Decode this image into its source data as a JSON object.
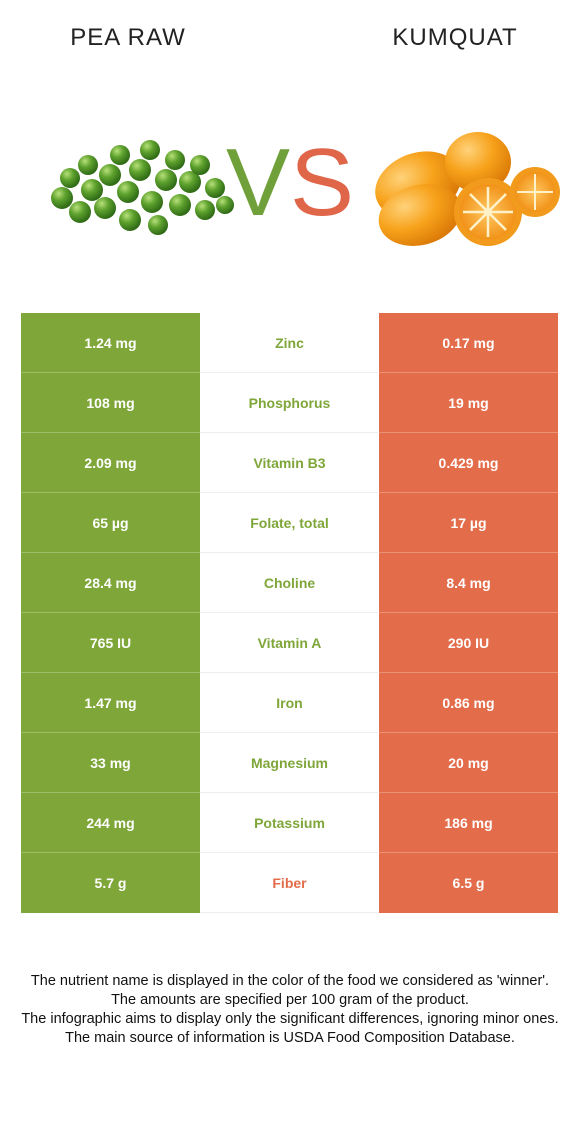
{
  "header": {
    "left_food": "PEA RAW",
    "right_food": "KUMQUAT",
    "vs_v": "V",
    "vs_s": "S"
  },
  "colors": {
    "left_food": "#7ea639",
    "right_food": "#e36c4a"
  },
  "rows": [
    {
      "left": "1.24 mg",
      "nutrient": "Zinc",
      "right": "0.17 mg",
      "winner": "left"
    },
    {
      "left": "108 mg",
      "nutrient": "Phosphorus",
      "right": "19 mg",
      "winner": "left"
    },
    {
      "left": "2.09 mg",
      "nutrient": "Vitamin B3",
      "right": "0.429 mg",
      "winner": "left"
    },
    {
      "left": "65 µg",
      "nutrient": "Folate, total",
      "right": "17 µg",
      "winner": "left"
    },
    {
      "left": "28.4 mg",
      "nutrient": "Choline",
      "right": "8.4 mg",
      "winner": "left"
    },
    {
      "left": "765 IU",
      "nutrient": "Vitamin A",
      "right": "290 IU",
      "winner": "left"
    },
    {
      "left": "1.47 mg",
      "nutrient": "Iron",
      "right": "0.86 mg",
      "winner": "left"
    },
    {
      "left": "33 mg",
      "nutrient": "Magnesium",
      "right": "20 mg",
      "winner": "left"
    },
    {
      "left": "244 mg",
      "nutrient": "Potassium",
      "right": "186 mg",
      "winner": "left"
    },
    {
      "left": "5.7 g",
      "nutrient": "Fiber",
      "right": "6.5 g",
      "winner": "right"
    }
  ],
  "footer": {
    "line1": "The nutrient name is displayed in the color of the food we considered as 'winner'.",
    "line2": "The amounts are specified per 100 gram of the product.",
    "line3": "The infographic aims to display only the significant differences, ignoring minor ones.",
    "line4": "The main source of information is USDA Food Composition Database."
  }
}
